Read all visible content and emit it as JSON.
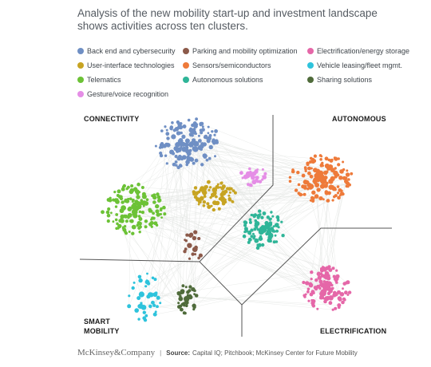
{
  "title_lines": [
    "Analysis of the new mobility start-up and investment landscape",
    "shows activities across ten clusters."
  ],
  "legend": [
    {
      "label": "Back end and cybersecurity",
      "color": "#6f8fc4"
    },
    {
      "label": "Parking and mobility optimization",
      "color": "#8c5a4a"
    },
    {
      "label": "Electrification/energy storage",
      "color": "#e567a8"
    },
    {
      "label": "User-interface technologies",
      "color": "#c7a422"
    },
    {
      "label": "Sensors/semiconductors",
      "color": "#ee7a3a"
    },
    {
      "label": "Vehicle leasing/fleet mgmt.",
      "color": "#2ec3dc"
    },
    {
      "label": "Telematics",
      "color": "#6cc236"
    },
    {
      "label": "Autonomous solutions",
      "color": "#2fb598"
    },
    {
      "label": "Sharing solutions",
      "color": "#4f6b3a"
    },
    {
      "label": "Gesture/voice recognition",
      "color": "#e58ee6"
    }
  ],
  "quadrants": {
    "top_left": "CONNECTIVITY",
    "top_right": "AUTONOMOUS",
    "bottom_left_line1": "SMART",
    "bottom_left_line2": "MOBILITY",
    "bottom_right": "ELECTRIFICATION"
  },
  "footer": {
    "brand": "McKinsey&Company",
    "separator": "|",
    "source_label": "Source:",
    "source_text": "Capital IQ; Pitchbook; McKinsey Center for Future Mobility"
  }
}
